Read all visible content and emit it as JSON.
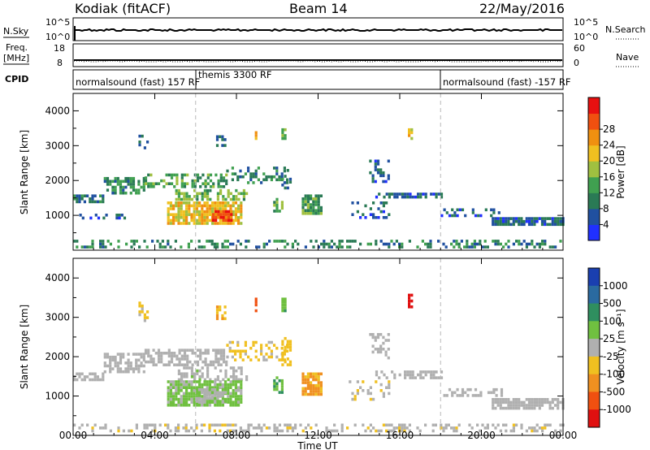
{
  "header": {
    "site": "Kodiak (fitACF)",
    "beam": "Beam 14",
    "date": "22/May/2016"
  },
  "top_panels": {
    "nsky_label": "N.Sky",
    "nsearch_label": "N.Search",
    "count_top": "10^5",
    "count_bottom": "10^0",
    "freq_label": "Freq.",
    "freq_unit": "[MHz]",
    "freq_top": "18",
    "freq_bottom": "8",
    "nave_label": "Nave",
    "nave_top": "60",
    "nave_bottom": "0",
    "cpid_label": "CPID",
    "cpid_segments": [
      {
        "label": "normalsound (fast) 157 RF",
        "start_hour": 0,
        "end_hour": 6
      },
      {
        "label": "themis 3300 RF",
        "start_hour": 6,
        "end_hour": 18
      },
      {
        "label": "normalsound (fast) -157 RF",
        "start_hour": 18,
        "end_hour": 24
      }
    ]
  },
  "colorbars": {
    "power": {
      "label": "Power [dB]",
      "ticks": [
        "4",
        "8",
        "12",
        "16",
        "20",
        "24",
        "28"
      ],
      "colors": [
        "#2030ff",
        "#2050a0",
        "#2a7a55",
        "#40a050",
        "#a0c040",
        "#f0c020",
        "#f09010",
        "#f05010",
        "#e81010"
      ]
    },
    "velocity": {
      "label": "Velocity [m s⁻¹]",
      "ticks": [
        "1000",
        "500",
        "100",
        "25",
        "-25",
        "-100",
        "-500",
        "-1000"
      ],
      "colors": [
        "#1a3fb0",
        "#2a6aa0",
        "#2f8f5f",
        "#70c040",
        "#b0b0b0",
        "#f0c020",
        "#f09020",
        "#f05010",
        "#e01010"
      ]
    }
  },
  "x_axis": {
    "label": "Time UT",
    "ticks": [
      "00:00",
      "04:00",
      "08:00",
      "12:00",
      "16:00",
      "20:00",
      "00:00"
    ]
  },
  "chart_data": [
    {
      "type": "heatmap",
      "title": "",
      "xlabel": "",
      "ylabel": "Slant Range [km]",
      "yticks": [
        1000,
        2000,
        3000,
        4000
      ],
      "ylim": [
        0,
        4500
      ],
      "xlim_hours": [
        0,
        24
      ],
      "zlabel": "Power [dB]",
      "zlim": [
        0,
        32
      ],
      "regions": [
        {
          "t0": 0.0,
          "t1": 1.5,
          "r0": 1400,
          "r1": 1600,
          "value": 8,
          "density": 0.65
        },
        {
          "t0": 1.5,
          "t1": 3.5,
          "r0": 1600,
          "r1": 2100,
          "value": 10,
          "density": 0.55
        },
        {
          "t0": 3.5,
          "t1": 7.5,
          "r0": 1800,
          "r1": 2200,
          "value": 12,
          "density": 0.5
        },
        {
          "t0": 5.0,
          "t1": 8.5,
          "r0": 1450,
          "r1": 1750,
          "value": 14,
          "density": 0.55
        },
        {
          "t0": 7.5,
          "t1": 10.5,
          "r0": 1900,
          "r1": 2400,
          "value": 9,
          "density": 0.35
        },
        {
          "t0": 4.6,
          "t1": 8.2,
          "r0": 800,
          "r1": 1400,
          "value": 20,
          "density": 0.85
        },
        {
          "t0": 6.8,
          "t1": 7.8,
          "r0": 850,
          "r1": 1150,
          "value": 28,
          "density": 0.9
        },
        {
          "t0": 9.8,
          "t1": 10.2,
          "r0": 1100,
          "r1": 1500,
          "value": 12,
          "density": 0.6
        },
        {
          "t0": 11.2,
          "t1": 12.2,
          "r0": 1050,
          "r1": 1600,
          "value": 12,
          "density": 0.75
        },
        {
          "t0": 10.2,
          "t1": 10.7,
          "r0": 1800,
          "r1": 2500,
          "value": 9,
          "density": 0.45
        },
        {
          "t0": 13.5,
          "t1": 15.5,
          "r0": 900,
          "r1": 1400,
          "value": 6,
          "density": 0.25
        },
        {
          "t0": 14.8,
          "t1": 18.0,
          "r0": 1500,
          "r1": 1650,
          "value": 6,
          "density": 0.6
        },
        {
          "t0": 14.5,
          "t1": 15.5,
          "r0": 2000,
          "r1": 2600,
          "value": 6,
          "density": 0.4
        },
        {
          "t0": 18.0,
          "t1": 21.0,
          "r0": 1000,
          "r1": 1200,
          "value": 6,
          "density": 0.35
        },
        {
          "t0": 20.5,
          "t1": 24.0,
          "r0": 700,
          "r1": 950,
          "value": 6,
          "density": 0.85
        },
        {
          "t0": 0.3,
          "t1": 3.0,
          "r0": 900,
          "r1": 1050,
          "value": 5,
          "density": 0.4
        },
        {
          "t0": 0.0,
          "t1": 24.0,
          "r0": 100,
          "r1": 300,
          "value": 9,
          "density": 0.35
        },
        {
          "t0": 8.9,
          "t1": 9.0,
          "r0": 3200,
          "r1": 3500,
          "value": 20,
          "density": 0.8
        },
        {
          "t0": 10.2,
          "t1": 10.4,
          "r0": 3200,
          "r1": 3500,
          "value": 14,
          "density": 0.8
        },
        {
          "t0": 16.4,
          "t1": 16.6,
          "r0": 3200,
          "r1": 3500,
          "value": 18,
          "density": 0.8
        },
        {
          "t0": 7.0,
          "t1": 7.5,
          "r0": 3000,
          "r1": 3300,
          "value": 6,
          "density": 0.5
        },
        {
          "t0": 3.2,
          "t1": 3.6,
          "r0": 2900,
          "r1": 3400,
          "value": 8,
          "density": 0.4
        }
      ]
    },
    {
      "type": "heatmap",
      "title": "",
      "xlabel": "Time UT",
      "ylabel": "Slant Range [km]",
      "yticks": [
        1000,
        2000,
        3000,
        4000
      ],
      "ylim": [
        0,
        4500
      ],
      "xlim_hours": [
        0,
        24
      ],
      "zlabel": "Velocity [m s⁻¹]",
      "zlim": [
        -1000,
        1000
      ],
      "regions": [
        {
          "t0": 0.0,
          "t1": 1.5,
          "r0": 1400,
          "r1": 1600,
          "value": 0,
          "density": 0.7
        },
        {
          "t0": 1.5,
          "t1": 3.5,
          "r0": 1600,
          "r1": 2100,
          "value": 0,
          "density": 0.6
        },
        {
          "t0": 3.5,
          "t1": 7.5,
          "r0": 1800,
          "r1": 2200,
          "value": 0,
          "density": 0.55
        },
        {
          "t0": 5.0,
          "t1": 8.5,
          "r0": 1450,
          "r1": 1750,
          "value": 60,
          "density": 0.5
        },
        {
          "t0": 7.5,
          "t1": 10.5,
          "r0": 1900,
          "r1": 2400,
          "value": -150,
          "density": 0.3
        },
        {
          "t0": 4.6,
          "t1": 8.2,
          "r0": 800,
          "r1": 1400,
          "value": 150,
          "density": 0.85
        },
        {
          "t0": 6.0,
          "t1": 7.5,
          "r0": 900,
          "r1": 1200,
          "value": 80,
          "density": 0.9
        },
        {
          "t0": 9.8,
          "t1": 10.2,
          "r0": 1100,
          "r1": 1500,
          "value": 300,
          "density": 0.6
        },
        {
          "t0": 11.2,
          "t1": 12.2,
          "r0": 1050,
          "r1": 1600,
          "value": -350,
          "density": 0.8
        },
        {
          "t0": 10.2,
          "t1": 10.7,
          "r0": 1800,
          "r1": 2500,
          "value": -200,
          "density": 0.45
        },
        {
          "t0": 13.5,
          "t1": 15.5,
          "r0": 900,
          "r1": 1400,
          "value": -80,
          "density": 0.2
        },
        {
          "t0": 14.8,
          "t1": 18.0,
          "r0": 1500,
          "r1": 1650,
          "value": 0,
          "density": 0.5
        },
        {
          "t0": 14.5,
          "t1": 15.5,
          "r0": 2000,
          "r1": 2600,
          "value": 40,
          "density": 0.35
        },
        {
          "t0": 18.0,
          "t1": 21.0,
          "r0": 1000,
          "r1": 1200,
          "value": 0,
          "density": 0.35
        },
        {
          "t0": 20.5,
          "t1": 24.0,
          "r0": 700,
          "r1": 950,
          "value": 0,
          "density": 0.85
        },
        {
          "t0": 0.0,
          "t1": 24.0,
          "r0": 100,
          "r1": 300,
          "value": -60,
          "density": 0.35
        },
        {
          "t0": 8.9,
          "t1": 9.0,
          "r0": 3200,
          "r1": 3500,
          "value": -600,
          "density": 0.8
        },
        {
          "t0": 10.2,
          "t1": 10.4,
          "r0": 3200,
          "r1": 3500,
          "value": 300,
          "density": 0.8
        },
        {
          "t0": 16.4,
          "t1": 16.6,
          "r0": 3300,
          "r1": 3600,
          "value": -900,
          "density": 0.8
        },
        {
          "t0": 7.0,
          "t1": 7.5,
          "r0": 3000,
          "r1": 3300,
          "value": -300,
          "density": 0.5
        },
        {
          "t0": 3.2,
          "t1": 3.6,
          "r0": 2900,
          "r1": 3400,
          "value": -150,
          "density": 0.4
        }
      ]
    }
  ]
}
